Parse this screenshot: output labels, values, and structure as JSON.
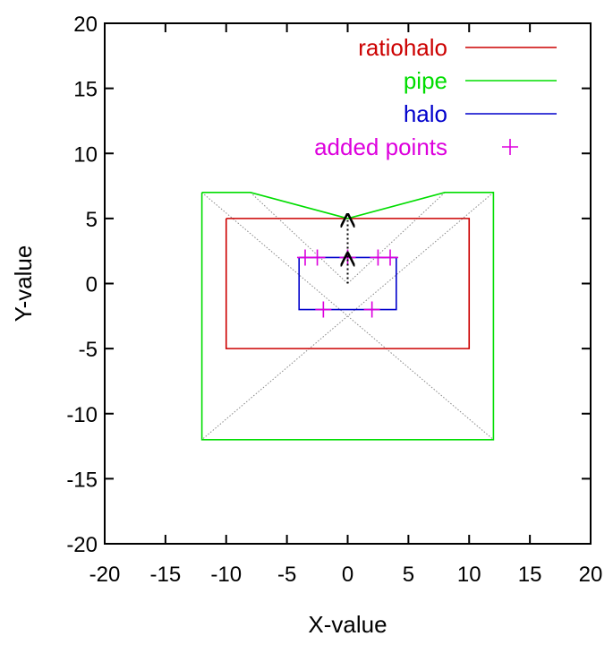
{
  "chart_data": {
    "type": "line",
    "xlabel": "X-value",
    "ylabel": "Y-value",
    "xlim": [
      -20,
      20
    ],
    "ylim": [
      -20,
      20
    ],
    "xticks": [
      -20,
      -15,
      -10,
      -5,
      0,
      5,
      10,
      15,
      20
    ],
    "yticks": [
      -20,
      -15,
      -10,
      -5,
      0,
      5,
      10,
      15,
      20
    ],
    "legend_position": "top-right",
    "series": [
      {
        "name": "ratiohalo",
        "color": "#cc0000",
        "x": [
          -10,
          10,
          10,
          -10,
          -10
        ],
        "y": [
          5,
          5,
          -5,
          -5,
          5
        ]
      },
      {
        "name": "pipe",
        "color": "#00dd00",
        "x": [
          -12,
          -8,
          0,
          8,
          12,
          12,
          -12,
          -12
        ],
        "y": [
          7,
          7,
          5,
          7,
          7,
          -12,
          -12,
          7
        ]
      },
      {
        "name": "halo",
        "color": "#0000cc",
        "x": [
          -4,
          4,
          4,
          -4,
          -4
        ],
        "y": [
          2,
          2,
          -2,
          -2,
          2
        ]
      },
      {
        "name": "added points",
        "color": "#dd00dd",
        "marker": "plus",
        "x": [
          -3.5,
          -2.5,
          0,
          2.5,
          3.5,
          -2,
          2
        ],
        "y": [
          2,
          2,
          2,
          2,
          2,
          -2,
          -2
        ]
      }
    ],
    "guide_lines": {
      "color": "#888888",
      "style": "dotted",
      "segments": [
        {
          "x": [
            -12,
            12
          ],
          "y": [
            7,
            -12
          ]
        },
        {
          "x": [
            12,
            -12
          ],
          "y": [
            7,
            -12
          ]
        },
        {
          "x": [
            -8,
            0
          ],
          "y": [
            7,
            0
          ]
        },
        {
          "x": [
            8,
            0
          ],
          "y": [
            7,
            0
          ]
        }
      ]
    },
    "arrows": {
      "color": "#000000",
      "style": "dotted",
      "segments": [
        {
          "x": [
            0,
            0
          ],
          "y": [
            0,
            2
          ]
        },
        {
          "x": [
            0,
            0
          ],
          "y": [
            2,
            5
          ]
        }
      ]
    }
  }
}
